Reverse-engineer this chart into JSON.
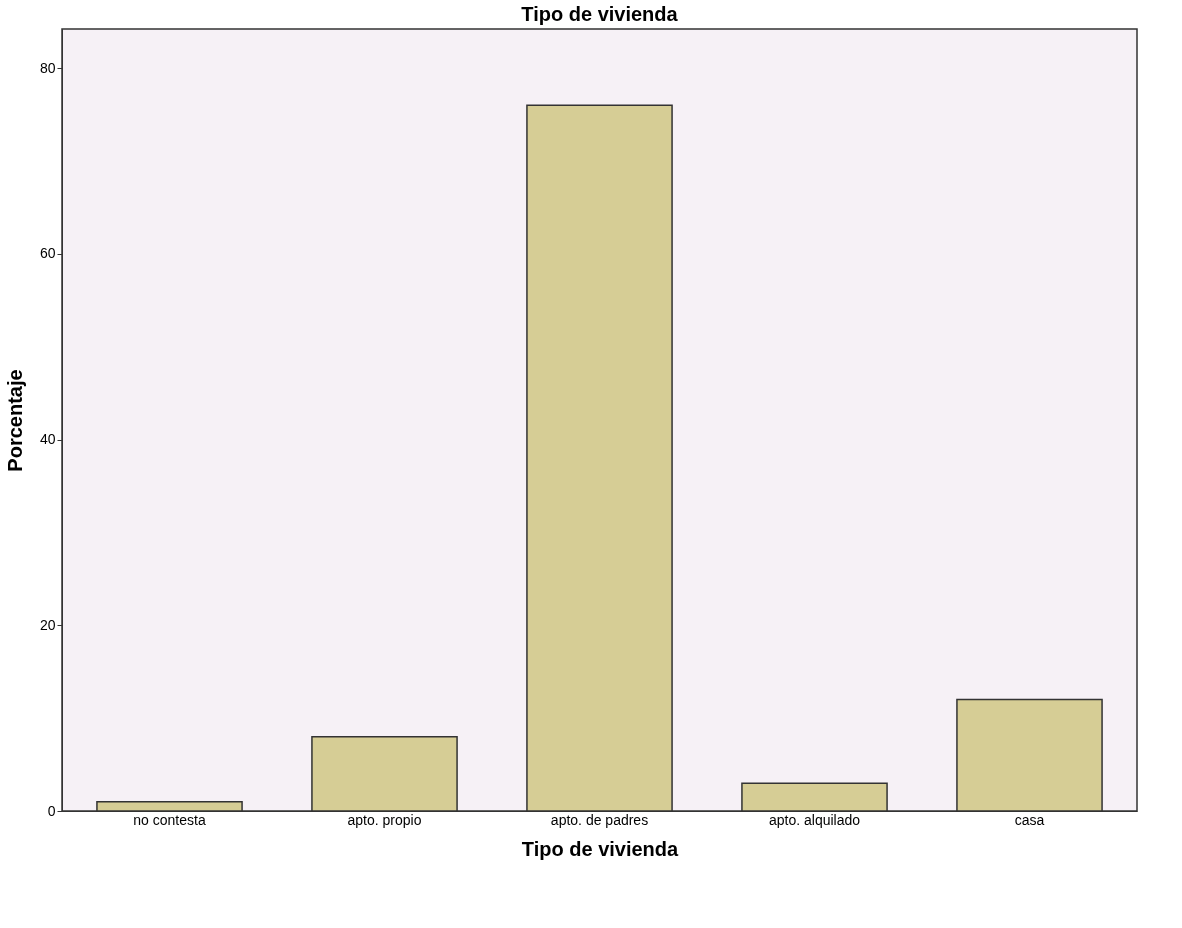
{
  "chart_data": {
    "type": "bar",
    "title": "Tipo de vivienda",
    "xlabel": "Tipo de vivienda",
    "ylabel": "Porcentaje",
    "categories": [
      "no contesta",
      "apto. propio",
      "apto. de padres",
      "apto. alquilado",
      "casa"
    ],
    "values": [
      1,
      8,
      76,
      3,
      12
    ],
    "color": "#d6cd95",
    "ylim": [
      0,
      84.2
    ],
    "yticks": [
      0,
      20,
      40,
      60,
      80
    ],
    "grid": false
  }
}
